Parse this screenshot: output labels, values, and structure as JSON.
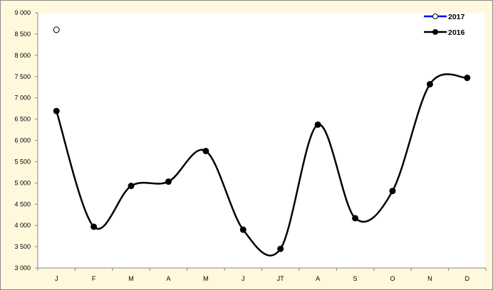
{
  "chart_data": {
    "type": "line",
    "categories": [
      "J",
      "F",
      "M",
      "A",
      "M",
      "J",
      "JT",
      "A",
      "S",
      "O",
      "N",
      "D"
    ],
    "ylim": [
      3000,
      9000
    ],
    "yticks": [
      3000,
      3500,
      4000,
      4500,
      5000,
      5500,
      6000,
      6500,
      7000,
      7500,
      8000,
      8500,
      9000
    ],
    "ytick_labels": [
      "3 000",
      "3 500",
      "4 000",
      "4 500",
      "5 000",
      "5 500",
      "6 000",
      "6 500",
      "7 000",
      "7 500",
      "8 000",
      "8 500",
      "9 000"
    ],
    "grid": false,
    "smooth": true,
    "legend_position": "top-right",
    "series": [
      {
        "name": "2017",
        "color": "#0000ff",
        "marker": "hollow-circle",
        "values": [
          8600,
          null,
          null,
          null,
          null,
          null,
          null,
          null,
          null,
          null,
          null,
          null
        ]
      },
      {
        "name": "2016",
        "color": "#000000",
        "marker": "filled-circle",
        "values": [
          6690,
          3970,
          4930,
          5030,
          5750,
          3900,
          3450,
          6370,
          4170,
          4810,
          7320,
          7470
        ]
      }
    ]
  }
}
